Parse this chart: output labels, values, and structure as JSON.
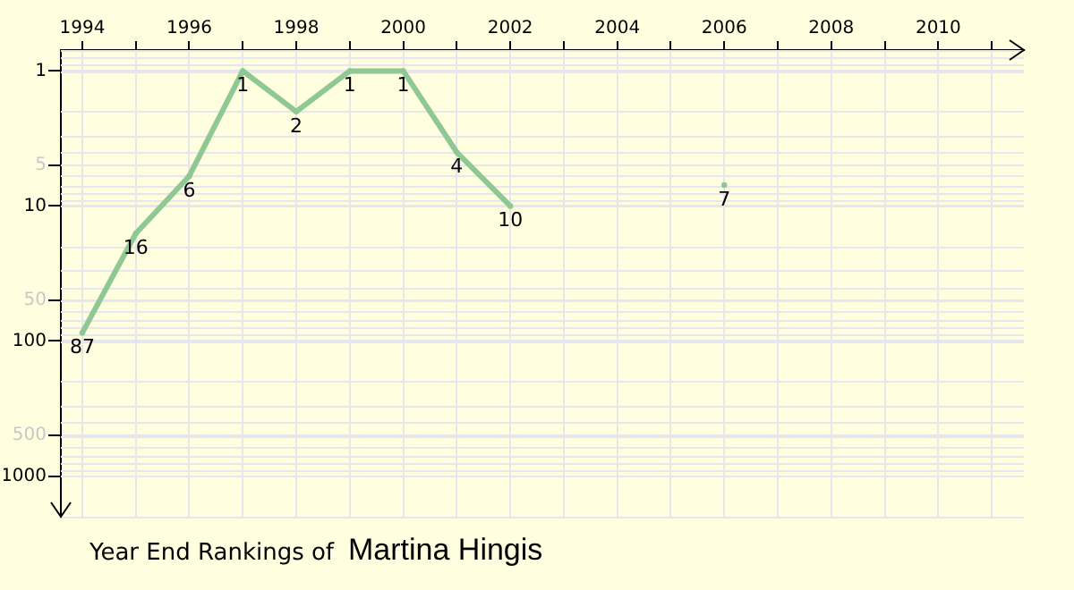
{
  "chart_data": {
    "type": "line",
    "title": "Year End Rankings of",
    "subtitle": "Martina Hingis",
    "x": [
      1994,
      1995,
      1996,
      1997,
      1998,
      1999,
      2000,
      2001,
      2002,
      2003,
      2004,
      2005,
      2006
    ],
    "series": [
      {
        "color": "#90c894",
        "values": [
          87,
          16,
          6,
          1,
          2,
          1,
          1,
          4,
          10,
          null,
          null,
          null,
          7
        ]
      }
    ],
    "xlim": [
      1993.6,
      2011.6
    ],
    "xticks": [
      1994,
      {
        "value": 1995,
        "label": null
      },
      1996,
      {
        "value": 1997,
        "label": null
      },
      1998,
      {
        "value": 1999,
        "label": null
      },
      2000,
      {
        "value": 2001,
        "label": null
      },
      2002,
      {
        "value": 2003,
        "label": null
      },
      2004,
      {
        "value": 2005,
        "label": null
      },
      2006,
      {
        "value": 2007,
        "label": null
      },
      2008,
      {
        "value": 2009,
        "label": null
      },
      2010,
      {
        "value": 2011,
        "label": null
      }
    ],
    "ylim": [
      2000,
      0.7
    ],
    "yticks": [
      1,
      5,
      10,
      50,
      100,
      500,
      1000
    ],
    "log": true,
    "grid": true,
    "marker": "circle",
    "data_labels": true,
    "legend": false
  }
}
